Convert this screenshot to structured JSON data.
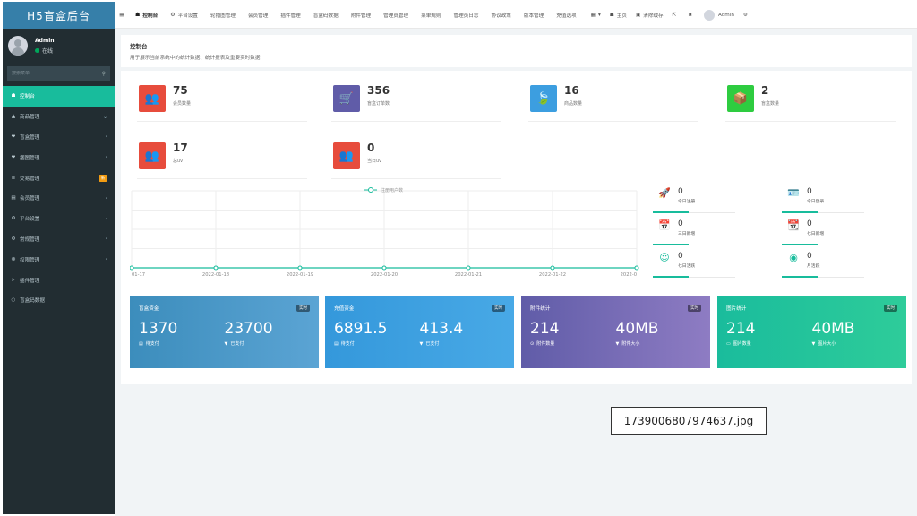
{
  "app_title": "H5盲盒后台",
  "user": {
    "name": "Admin",
    "status": "在线"
  },
  "search": {
    "placeholder": "搜索菜单"
  },
  "sidebar": {
    "items": [
      {
        "icon": "☗",
        "label": "控制台",
        "active": true
      },
      {
        "icon": "▲",
        "label": "商品管理",
        "arrow": "⌄"
      },
      {
        "icon": "❤",
        "label": "盲盒管理",
        "arrow": "‹"
      },
      {
        "icon": "❤",
        "label": "捆图管理",
        "arrow": "‹"
      },
      {
        "icon": "≡",
        "label": "交易管理",
        "badge": "新"
      },
      {
        "icon": "▤",
        "label": "会员管理",
        "arrow": "‹"
      },
      {
        "icon": "⚙",
        "label": "平台设置",
        "arrow": "‹"
      },
      {
        "icon": "⚙",
        "label": "常规管理",
        "arrow": "‹"
      },
      {
        "icon": "☸",
        "label": "权限管理",
        "arrow": "‹"
      },
      {
        "icon": "➤",
        "label": "插件管理"
      },
      {
        "icon": "○",
        "label": "盲盒码数据"
      }
    ]
  },
  "topnav": {
    "toggle": "≡",
    "tabs": [
      {
        "icon": "☗",
        "label": "控制台",
        "active": true
      },
      {
        "icon": "⚙",
        "label": "平台设置"
      },
      {
        "label": "轮播图管理"
      },
      {
        "label": "会员管理"
      },
      {
        "label": "插件管理"
      },
      {
        "label": "盲盒码数据"
      },
      {
        "label": "附件管理"
      },
      {
        "label": "管理员管理"
      },
      {
        "label": "菜单规则"
      },
      {
        "label": "管理员日志"
      },
      {
        "label": "协议政策"
      },
      {
        "label": "版本管理"
      },
      {
        "label": "充值选项"
      }
    ],
    "right": [
      {
        "icon": "▦",
        "label": "▾"
      },
      {
        "icon": "☗",
        "label": "主页"
      },
      {
        "icon": "▣",
        "label": "清除缓存"
      },
      {
        "icon": "⇱",
        "label": ""
      },
      {
        "icon": "✖",
        "label": ""
      },
      {
        "icon": "",
        "label": "Admin",
        "avatar": true
      },
      {
        "icon": "⚙",
        "label": ""
      }
    ]
  },
  "page": {
    "title": "控制台",
    "subtitle": "用于展示当前系统中的统计数据、统计报表及重要实时数据"
  },
  "stats": [
    {
      "value": "75",
      "label": "会员数量",
      "color": "#e74c3c",
      "icon": "👥"
    },
    {
      "value": "356",
      "label": "盲盒订单数",
      "color": "#605ca8",
      "icon": "🛒"
    },
    {
      "value": "16",
      "label": "商品数量",
      "color": "#3c9ee0",
      "icon": "🍃"
    },
    {
      "value": "2",
      "label": "盲盒数量",
      "color": "#2ecc40",
      "icon": "📦"
    },
    {
      "value": "17",
      "label": "总uv",
      "color": "#e74c3c",
      "icon": "👥"
    },
    {
      "value": "0",
      "label": "当日uv",
      "color": "#e74c3c",
      "icon": "👥"
    }
  ],
  "mini_stats": [
    {
      "value": "0",
      "label": "今日注册",
      "icon": "🚀"
    },
    {
      "value": "0",
      "label": "今日登录",
      "icon": "🪪"
    },
    {
      "value": "0",
      "label": "三日新增",
      "icon": "📅"
    },
    {
      "value": "0",
      "label": "七日新增",
      "icon": "📆"
    },
    {
      "value": "0",
      "label": "七日活跃",
      "icon": "☺"
    },
    {
      "value": "0",
      "label": "月活跃",
      "icon": "◉"
    }
  ],
  "chart_data": {
    "type": "line",
    "legend": "注册用户数",
    "x": [
      "01-17",
      "2022-01-18",
      "2022-01-19",
      "2022-01-20",
      "2022-01-21",
      "2022-01-22",
      "2022-0"
    ],
    "values": [
      0,
      0,
      0,
      0,
      0,
      0,
      0
    ],
    "grid": true
  },
  "cards": [
    {
      "title": "盲盒资金",
      "badge": "实时",
      "v1": "1370",
      "l1": "待支付",
      "i1": "▤",
      "v2": "23700",
      "l2": "已支付",
      "i2": "▼",
      "color": "#3c8dbc",
      "color2": "#5ba4d4"
    },
    {
      "title": "充值资金",
      "badge": "实时",
      "v1": "6891.5",
      "l1": "待支付",
      "i1": "▤",
      "v2": "413.4",
      "l2": "已支付",
      "i2": "▼",
      "color": "#3498db",
      "color2": "#48a9e6"
    },
    {
      "title": "附件统计",
      "badge": "实时",
      "v1": "214",
      "l1": "附件数量",
      "i1": "⊙",
      "v2": "40MB",
      "l2": "附件大小",
      "i2": "▼",
      "color": "#605ca8",
      "color2": "#8e7cc3"
    },
    {
      "title": "图片统计",
      "badge": "实时",
      "v1": "214",
      "l1": "图片数量",
      "i1": "▭",
      "v2": "40MB",
      "l2": "图片大小",
      "i2": "▼",
      "color": "#1abc9c",
      "color2": "#2ecc9a"
    }
  ],
  "file_tag": "1739006807974637.jpg"
}
